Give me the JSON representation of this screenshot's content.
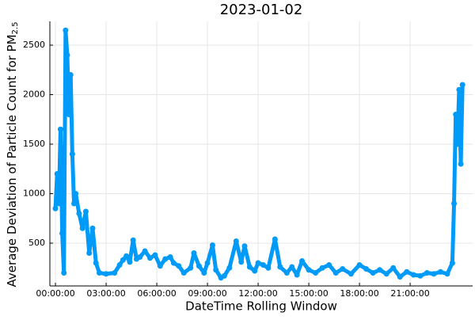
{
  "chart_data": {
    "type": "scatter",
    "title": "2023-01-02",
    "xlabel": "DateTime Rolling Window",
    "ylabel": "Average Deviation of Particle Count for PM",
    "ylabel_subscript": "2.5",
    "color": "#009af9",
    "grid": true,
    "x": [
      0.0,
      0.1,
      0.2,
      0.3,
      0.4,
      0.5,
      0.6,
      0.7,
      0.8,
      0.9,
      1.0,
      1.1,
      1.2,
      1.4,
      1.6,
      1.8,
      2.0,
      2.2,
      2.4,
      2.6,
      3.0,
      3.5,
      3.8,
      4.0,
      4.2,
      4.4,
      4.6,
      4.8,
      5.0,
      5.3,
      5.6,
      5.9,
      6.2,
      6.5,
      6.8,
      7.0,
      7.3,
      7.6,
      8.0,
      8.2,
      8.5,
      8.8,
      9.0,
      9.3,
      9.5,
      9.8,
      10.0,
      10.3,
      10.7,
      11.0,
      11.2,
      11.5,
      11.8,
      12.0,
      12.3,
      12.6,
      13.0,
      13.3,
      13.7,
      14.0,
      14.3,
      14.6,
      15.0,
      15.4,
      15.8,
      16.2,
      16.6,
      17.0,
      17.5,
      18.0,
      18.4,
      18.8,
      19.2,
      19.6,
      20.0,
      20.4,
      20.8,
      21.2,
      21.6,
      22.0,
      22.4,
      22.8,
      23.2,
      23.5,
      23.6,
      23.7,
      23.8,
      23.9,
      24.0,
      24.1
    ],
    "values": [
      850,
      1200,
      900,
      1650,
      600,
      200,
      2650,
      2400,
      1800,
      2200,
      1400,
      900,
      1000,
      800,
      650,
      820,
      400,
      650,
      300,
      200,
      190,
      200,
      280,
      330,
      370,
      310,
      530,
      340,
      360,
      420,
      350,
      380,
      270,
      340,
      360,
      300,
      270,
      200,
      250,
      400,
      270,
      200,
      300,
      480,
      230,
      150,
      170,
      250,
      520,
      310,
      470,
      260,
      220,
      300,
      280,
      250,
      540,
      260,
      200,
      260,
      180,
      320,
      230,
      200,
      250,
      280,
      200,
      240,
      190,
      280,
      240,
      200,
      230,
      190,
      250,
      160,
      210,
      180,
      170,
      200,
      190,
      210,
      190,
      300,
      900,
      1800,
      1500,
      2050,
      1300,
      2100
    ],
    "xlim": [
      -0.33,
      24.7
    ],
    "ylim": [
      68,
      2740
    ],
    "xticks": [
      {
        "value": 0,
        "label": "00:00:00"
      },
      {
        "value": 3,
        "label": "03:00:00"
      },
      {
        "value": 6,
        "label": "06:00:00"
      },
      {
        "value": 9,
        "label": "09:00:00"
      },
      {
        "value": 12,
        "label": "12:00:00"
      },
      {
        "value": 15,
        "label": "15:00:00"
      },
      {
        "value": 18,
        "label": "18:00:00"
      },
      {
        "value": 21,
        "label": "21:00:00"
      }
    ],
    "yticks": [
      500,
      1000,
      1500,
      2000,
      2500
    ]
  }
}
